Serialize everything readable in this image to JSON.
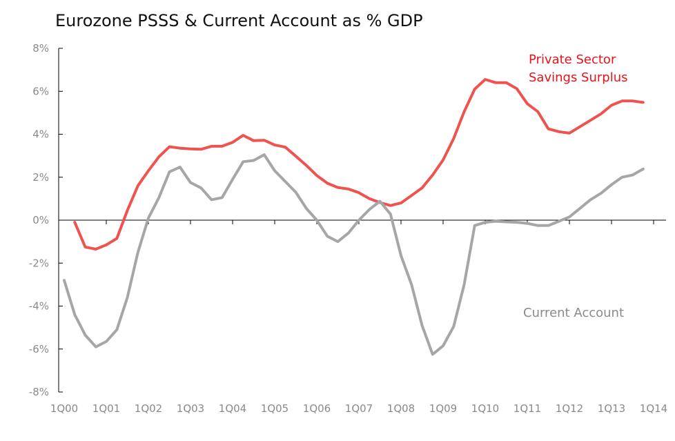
{
  "chart_data": {
    "type": "line",
    "title": "Eurozone PSSS & Current Account as % GDP",
    "xlabel": "",
    "ylabel": "",
    "ylim": [
      -8,
      8
    ],
    "yticks": [
      "8%",
      "6%",
      "4%",
      "2%",
      "0%",
      "-2%",
      "-4%",
      "-6%",
      "-8%"
    ],
    "ytick_values": [
      8,
      6,
      4,
      2,
      0,
      -2,
      -4,
      -6,
      -8
    ],
    "xticks": [
      "1Q00",
      "1Q01",
      "1Q02",
      "1Q03",
      "1Q04",
      "1Q05",
      "1Q06",
      "1Q07",
      "1Q08",
      "1Q09",
      "1Q10",
      "1Q11",
      "1Q12",
      "1Q13",
      "1Q14"
    ],
    "xtick_values": [
      2000,
      2001,
      2002,
      2003,
      2004,
      2005,
      2006,
      2007,
      2008,
      2009,
      2010,
      2011,
      2012,
      2013,
      2014
    ],
    "grid": false,
    "colors": {
      "psss": "#ef5350",
      "current_account": "#a6a6a6",
      "axis": "#000000",
      "tick_text": "#8a8a8a"
    },
    "annotations": [
      {
        "text": "Private Sector",
        "series": "psss"
      },
      {
        "text": "Savings Surplus",
        "series": "psss"
      },
      {
        "text": "Current Account",
        "series": "current_account"
      }
    ],
    "series": [
      {
        "key": "psss",
        "x": [
          2000.25,
          2000.5,
          2000.75,
          2001.0,
          2001.25,
          2001.5,
          2001.75,
          2002.0,
          2002.25,
          2002.5,
          2002.75,
          2003.0,
          2003.25,
          2003.5,
          2003.75,
          2004.0,
          2004.25,
          2004.5,
          2004.75,
          2005.0,
          2005.25,
          2005.5,
          2005.75,
          2006.0,
          2006.25,
          2006.5,
          2006.75,
          2007.0,
          2007.25,
          2007.5,
          2007.75,
          2008.0,
          2008.25,
          2008.5,
          2008.75,
          2009.0,
          2009.25,
          2009.5,
          2009.75,
          2010.0,
          2010.25,
          2010.5,
          2010.75,
          2011.0,
          2011.25,
          2011.5,
          2011.75,
          2012.0,
          2012.25,
          2012.5,
          2012.75,
          2013.0,
          2013.25,
          2013.5,
          2013.75
        ],
        "values": [
          -0.1,
          -1.25,
          -1.35,
          -1.15,
          -0.85,
          0.45,
          1.6,
          2.3,
          2.95,
          3.42,
          3.35,
          3.32,
          3.3,
          3.44,
          3.44,
          3.62,
          3.95,
          3.7,
          3.72,
          3.5,
          3.4,
          2.98,
          2.55,
          2.08,
          1.72,
          1.52,
          1.45,
          1.28,
          1.0,
          0.82,
          0.68,
          0.8,
          1.15,
          1.5,
          2.1,
          2.8,
          3.8,
          5.05,
          6.1,
          6.55,
          6.4,
          6.4,
          6.12,
          5.42,
          5.05,
          4.25,
          4.12,
          4.05,
          4.35,
          4.65,
          4.95,
          5.35,
          5.55,
          5.55,
          5.48
        ]
      },
      {
        "key": "current_account",
        "x": [
          2000.0,
          2000.25,
          2000.5,
          2000.75,
          2001.0,
          2001.25,
          2001.5,
          2001.75,
          2002.0,
          2002.25,
          2002.5,
          2002.75,
          2003.0,
          2003.25,
          2003.5,
          2003.75,
          2004.0,
          2004.25,
          2004.5,
          2004.75,
          2005.0,
          2005.25,
          2005.5,
          2005.75,
          2006.0,
          2006.25,
          2006.5,
          2006.75,
          2007.0,
          2007.25,
          2007.5,
          2007.75,
          2008.0,
          2008.25,
          2008.5,
          2008.75,
          2009.0,
          2009.25,
          2009.5,
          2009.75,
          2010.0,
          2010.25,
          2010.5,
          2010.75,
          2011.0,
          2011.25,
          2011.5,
          2011.75,
          2012.0,
          2012.25,
          2012.5,
          2012.75,
          2013.0,
          2013.25,
          2013.5,
          2013.75
        ],
        "values": [
          -2.8,
          -4.4,
          -5.35,
          -5.9,
          -5.65,
          -5.1,
          -3.6,
          -1.5,
          0.1,
          1.05,
          2.25,
          2.47,
          1.75,
          1.5,
          0.95,
          1.05,
          1.9,
          2.72,
          2.78,
          3.05,
          2.3,
          1.8,
          1.3,
          0.55,
          0.0,
          -0.75,
          -1.0,
          -0.6,
          0.0,
          0.5,
          0.88,
          0.28,
          -1.65,
          -3.0,
          -4.9,
          -6.25,
          -5.85,
          -4.95,
          -3.0,
          -0.25,
          -0.1,
          -0.05,
          -0.08,
          -0.1,
          -0.15,
          -0.25,
          -0.25,
          -0.05,
          0.15,
          0.55,
          0.95,
          1.25,
          1.65,
          2.0,
          2.1,
          2.38
        ]
      }
    ]
  }
}
